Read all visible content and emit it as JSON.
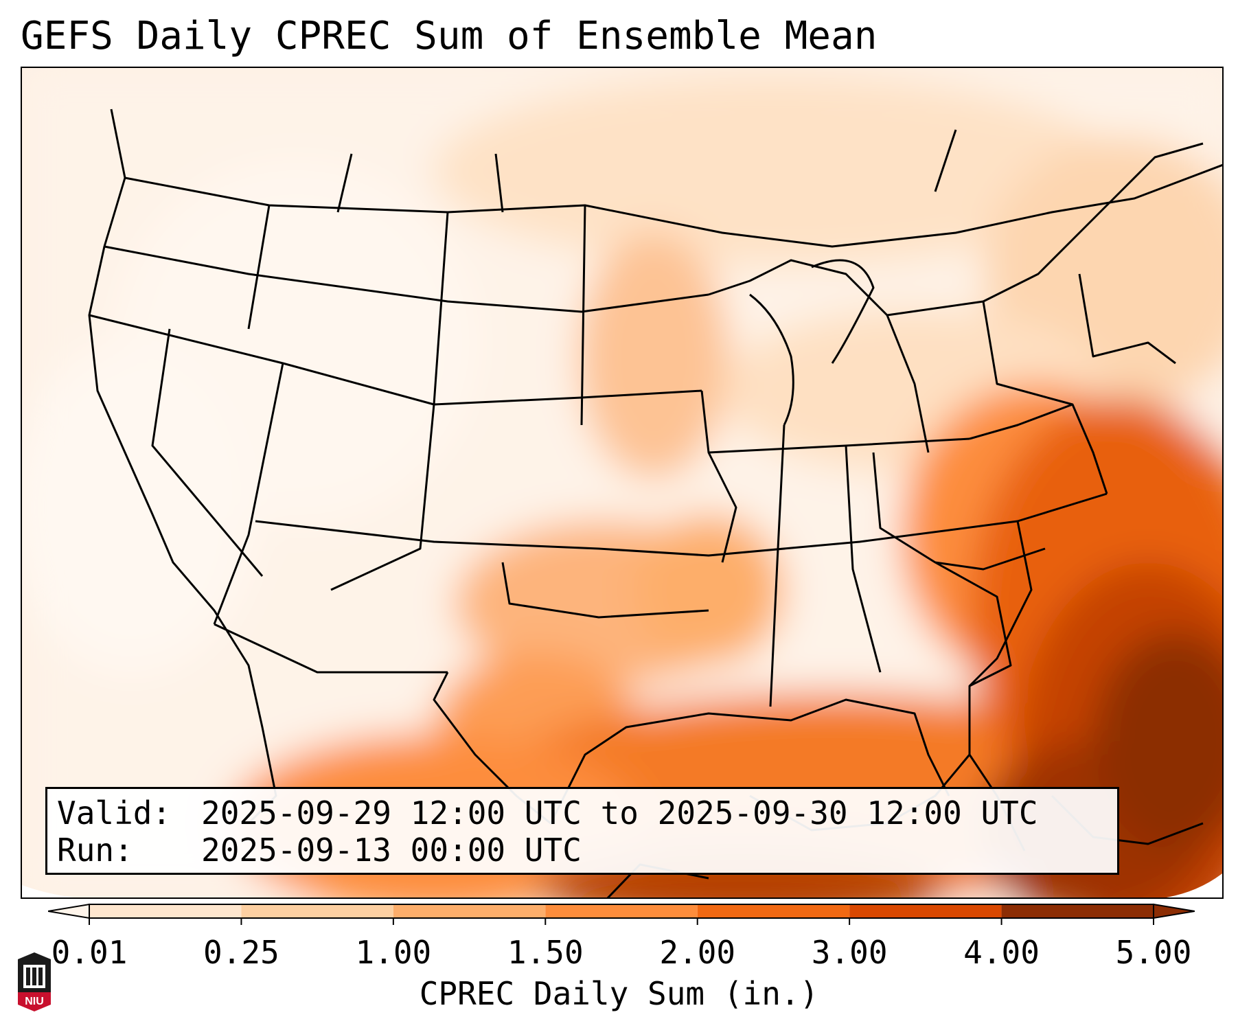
{
  "title": "GEFS Daily CPREC Sum of Ensemble Mean",
  "info": {
    "valid_label": "Valid:",
    "valid_value": "2025-09-29 12:00 UTC to 2025-09-30 12:00 UTC",
    "run_label": "Run:",
    "run_value": "2025-09-13 00:00 UTC"
  },
  "colorbar": {
    "label": "CPREC Daily Sum (in.)",
    "ticks": [
      "0.01",
      "0.25",
      "1.00",
      "1.50",
      "2.00",
      "3.00",
      "4.00",
      "5.00"
    ],
    "colors": [
      "#fff5eb",
      "#fee6ce",
      "#fdd0a2",
      "#fdae6b",
      "#fd8d3c",
      "#f16913",
      "#d94801",
      "#8c2d04"
    ]
  },
  "logo": {
    "name": "niu-logo",
    "text": "NIU"
  }
}
